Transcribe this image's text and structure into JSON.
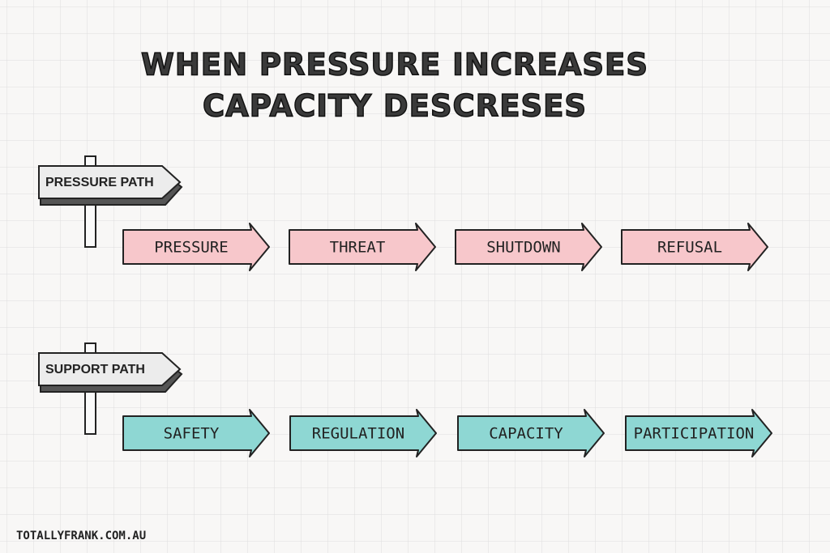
{
  "title": {
    "line1": "WHEN PRESSURE INCREASES",
    "line2": "CAPACITY DESCRESES"
  },
  "paths": [
    {
      "label": "PRESSURE PATH",
      "color": "#f7c7cb",
      "steps": [
        "PRESSURE",
        "THREAT",
        "SHUTDOWN",
        "REFUSAL"
      ]
    },
    {
      "label": "SUPPORT PATH",
      "color": "#8ed7d3",
      "steps": [
        "SAFETY",
        "REGULATION",
        "CAPACITY",
        "PARTICIPATION"
      ]
    }
  ],
  "footer": "TOTALLYFRANK.COM.AU"
}
